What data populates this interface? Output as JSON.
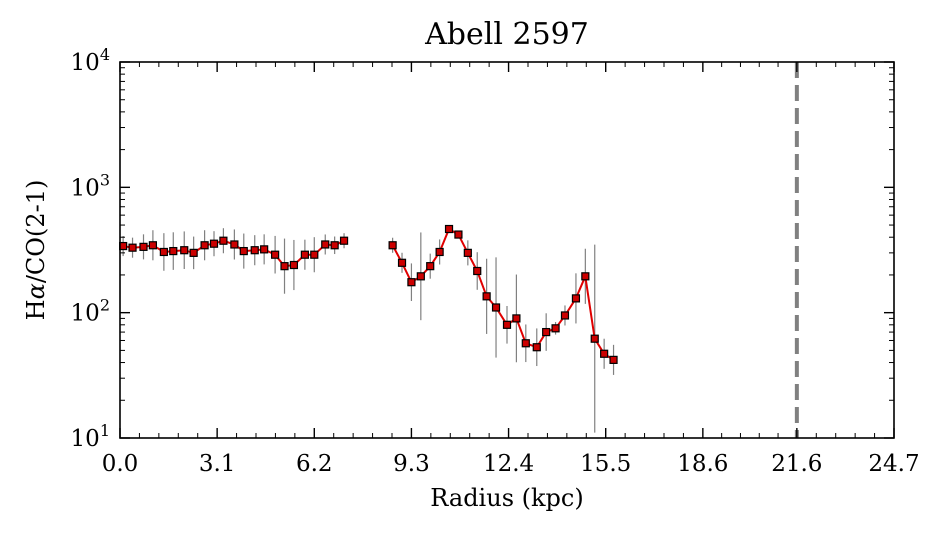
{
  "chart_data": {
    "type": "line",
    "title": "Abell 2597",
    "xlabel": "Radius (kpc)",
    "ylabel_prefix": "H",
    "ylabel_greek": "α",
    "ylabel_suffix": "/CO(2-1)",
    "xlim": [
      0,
      24.7
    ],
    "ylim": [
      10,
      10000
    ],
    "yscale": "log",
    "xticks": [
      0.0,
      3.1,
      6.2,
      9.3,
      12.4,
      15.5,
      18.6,
      21.6,
      24.7
    ],
    "xtick_labels": [
      "0.0",
      "3.1",
      "6.2",
      "9.3",
      "12.4",
      "15.5",
      "18.6",
      "21.6",
      "24.7"
    ],
    "ytick_base": "10",
    "ytick_exponents": [
      "1",
      "2",
      "3",
      "4"
    ],
    "vline": {
      "x": 21.6,
      "color": "#808080",
      "style": "dashed"
    },
    "colors": {
      "line": "#e00000",
      "marker_fill": "#cc0000",
      "marker_edge": "#000000",
      "errorbar": "#808080"
    },
    "series": [
      {
        "x": [
          0.1,
          0.4,
          0.75,
          1.05,
          1.4,
          1.7,
          2.05,
          2.35,
          2.7,
          3.0,
          3.3,
          3.65,
          3.95,
          4.3,
          4.6,
          4.95,
          5.25,
          5.55,
          5.9,
          6.2,
          6.55,
          6.85,
          7.15
        ],
        "y": [
          340,
          330,
          335,
          345,
          305,
          310,
          315,
          300,
          345,
          355,
          375,
          350,
          310,
          315,
          320,
          290,
          235,
          240,
          290,
          290,
          350,
          345,
          375
        ],
        "yerr": [
          0.08,
          0.08,
          0.1,
          0.12,
          0.15,
          0.15,
          0.15,
          0.13,
          0.12,
          0.1,
          0.1,
          0.12,
          0.14,
          0.12,
          0.12,
          0.15,
          0.22,
          0.2,
          0.12,
          0.14,
          0.08,
          0.07,
          0.06
        ]
      },
      {
        "x": [
          8.7,
          9.0,
          9.3,
          9.6,
          9.9,
          10.2,
          10.5,
          10.8,
          11.1,
          11.4,
          11.7,
          12.0,
          12.35,
          12.65,
          12.95,
          13.3,
          13.6,
          13.9,
          14.2,
          14.55,
          14.85,
          15.15,
          15.45,
          15.75
        ],
        "y": [
          345,
          250,
          175,
          195,
          235,
          305,
          465,
          420,
          300,
          215,
          135,
          110,
          80,
          90,
          57,
          53,
          70,
          75,
          95,
          130,
          195,
          62,
          47,
          42
        ],
        "yerr": [
          0.06,
          0.08,
          0.15,
          0.35,
          0.1,
          0.1,
          0.03,
          0.03,
          0.1,
          0.15,
          0.3,
          0.4,
          0.15,
          0.35,
          0.15,
          0.15,
          0.15,
          0.05,
          0.08,
          0.2,
          0.22,
          0.75,
          0.12,
          0.12
        ]
      }
    ]
  }
}
